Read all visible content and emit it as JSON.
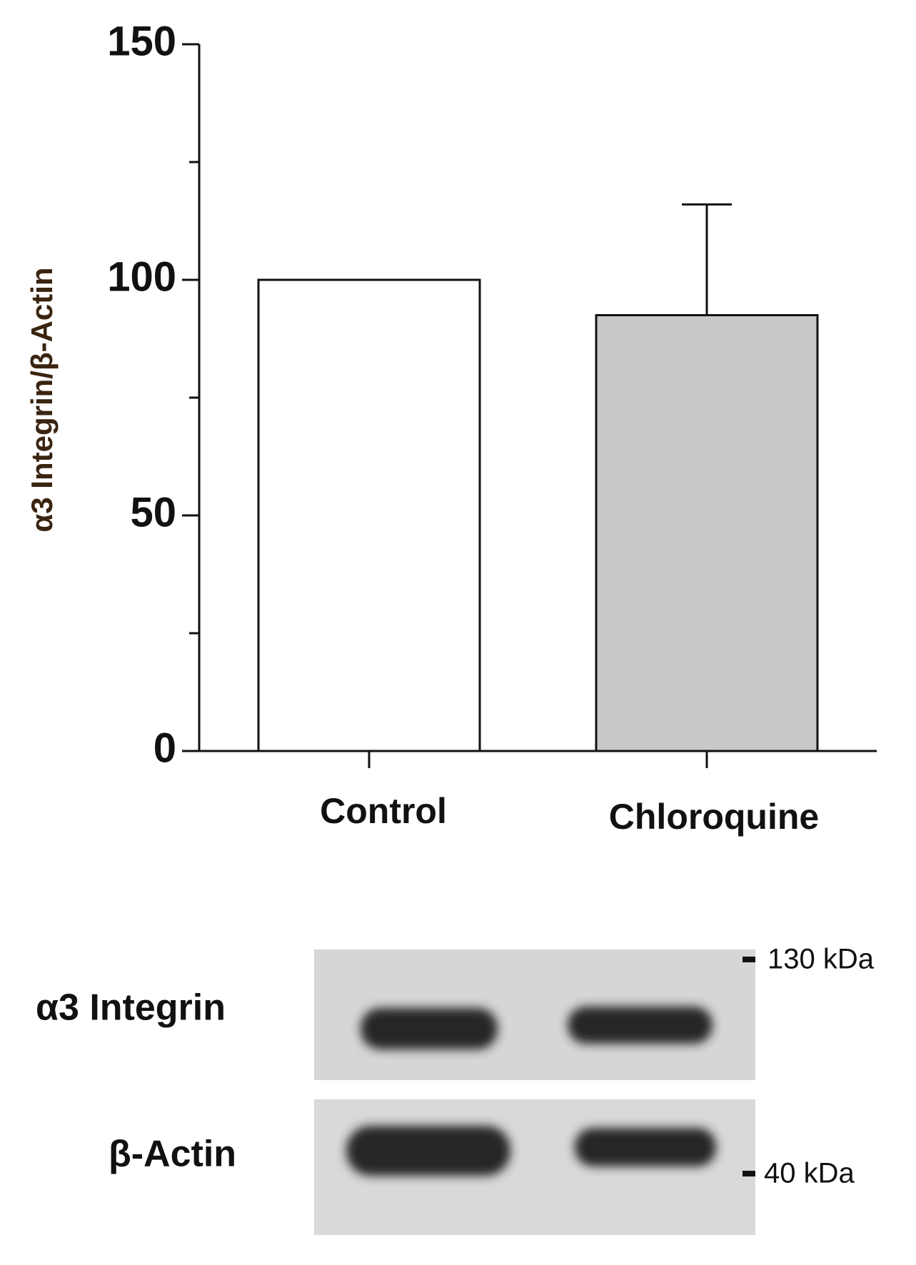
{
  "chart_data": {
    "type": "bar",
    "y_label": "α3 Integrin/β-Actin",
    "categories": [
      "Control",
      "Chloroquine"
    ],
    "values": [
      100,
      92.5
    ],
    "errors": [
      null,
      23.5
    ],
    "colors": [
      "#ffffff",
      "#c8c8c8"
    ],
    "ylim": [
      0,
      150
    ],
    "yticks": [
      0,
      50,
      100,
      150
    ],
    "yminorticks": [
      25,
      75,
      125
    ]
  },
  "blot": {
    "rows": [
      "α3 Integrin",
      "β-Actin"
    ],
    "markers": [
      "130 kDa",
      "40 kDa"
    ]
  }
}
